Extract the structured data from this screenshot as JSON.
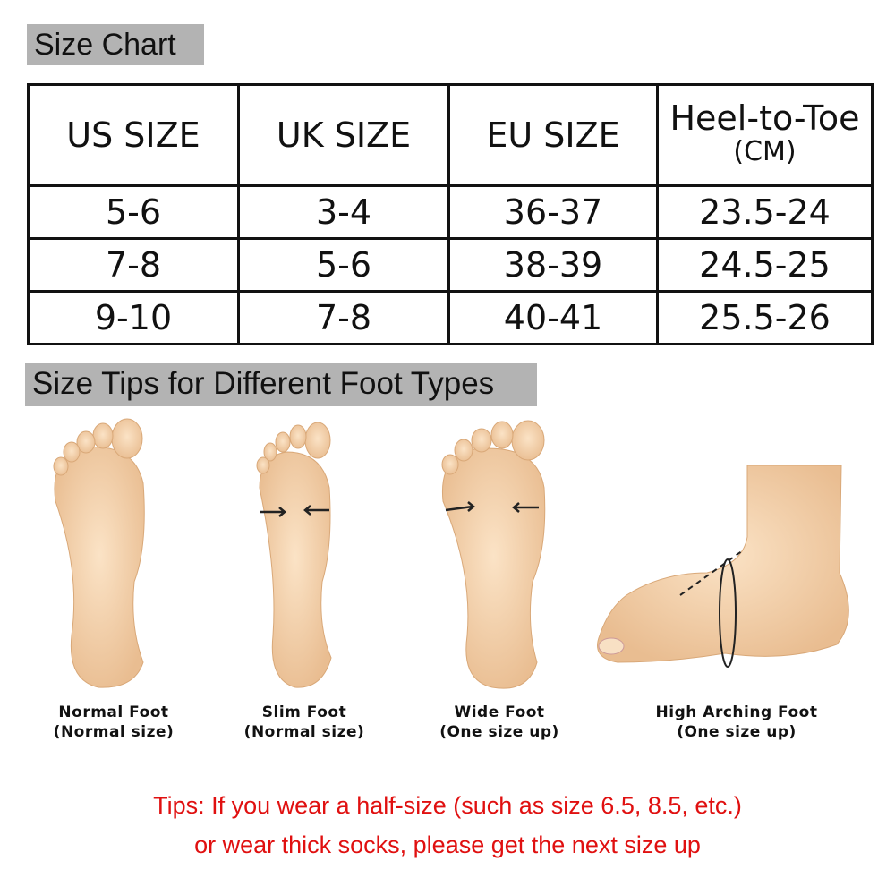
{
  "size_chart": {
    "title": "Size Chart",
    "headers": [
      "US SIZE",
      "UK SIZE",
      "EU SIZE",
      "Heel-to-Toe",
      "(CM)"
    ],
    "rows": [
      [
        "5-6",
        "3-4",
        "36-37",
        "23.5-24"
      ],
      [
        "7-8",
        "5-6",
        "38-39",
        "24.5-25"
      ],
      [
        "9-10",
        "7-8",
        "40-41",
        "25.5-26"
      ]
    ]
  },
  "tips_section": {
    "title": "Size Tips for Different Foot Types",
    "feet": [
      {
        "name": "Normal Foot",
        "advice": "(Normal size)"
      },
      {
        "name": "Slim Foot",
        "advice": "(Normal size)"
      },
      {
        "name": "Wide Foot",
        "advice": "(One size up)"
      },
      {
        "name": "High Arching Foot",
        "advice": "(One size up)"
      }
    ]
  },
  "tip_note": {
    "line1": "Tips: If you wear a half-size (such as size 6.5,  8.5, etc.)",
    "line2": "or wear thick socks, please get the next size up",
    "color": "#e01010"
  },
  "colors": {
    "skin": "#f6d6b0",
    "header_bg": "#b3b3b3"
  }
}
